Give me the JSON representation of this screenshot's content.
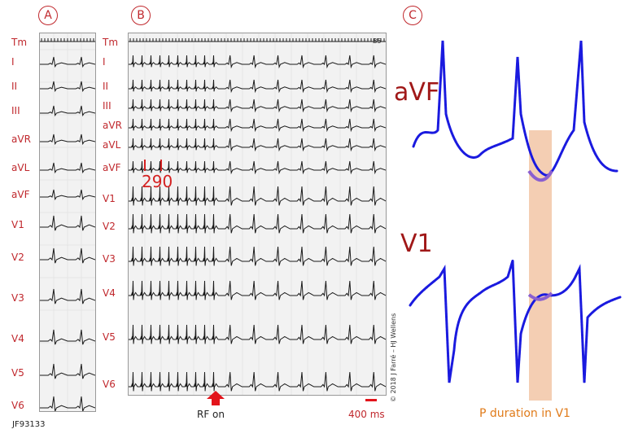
{
  "panels": {
    "a": "A",
    "b": "B",
    "c": "C"
  },
  "panel_a": {
    "leads": [
      "Tm",
      "I",
      "II",
      "III",
      "aVR",
      "aVL",
      "aVF",
      "V1",
      "V2",
      "V3",
      "V4",
      "V5",
      "V6"
    ]
  },
  "panel_b": {
    "leads": [
      "Tm",
      "I",
      "II",
      "III",
      "aVR",
      "aVL",
      "aVF",
      "V1",
      "V2",
      "V3",
      "V4",
      "V5",
      "V6"
    ],
    "annotation_interval": "290",
    "speed_tag": "B5"
  },
  "panel_c": {
    "lead_top": "aVF",
    "lead_bottom": "V1",
    "highlight_caption": "P duration in V1"
  },
  "footer": {
    "figure_id": "JF93133",
    "rf_label": "RF on",
    "scale_label": "400 ms",
    "copyright": "© 2018 J Farré – HJ Wellens"
  },
  "colors": {
    "label_red": "#c0282d",
    "trace_blue": "#1a1adf",
    "highlight": "#f2c6a6",
    "arrow_red": "#e3141b"
  }
}
